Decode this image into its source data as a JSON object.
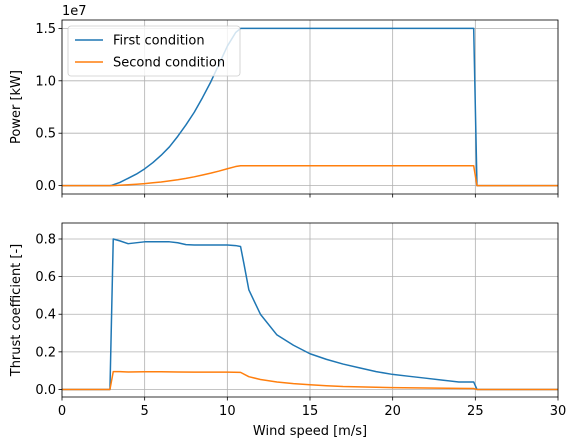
{
  "chart_data": [
    {
      "type": "line",
      "ylabel": "Power [kW]",
      "xlabel": "",
      "xlim": [
        0,
        30
      ],
      "ylim": [
        -0.08,
        1.58
      ],
      "y_offset_label": "1e7",
      "xticks": [
        0,
        5,
        10,
        15,
        20,
        25,
        30
      ],
      "xtick_labels": [],
      "yticks": [
        0.0,
        0.5,
        1.0,
        1.5
      ],
      "ytick_labels": [
        "0.0",
        "0.5",
        "1.0",
        "1.5"
      ],
      "grid": true,
      "legend_position": "upper-left",
      "series": [
        {
          "name": "First condition",
          "color": "#1f77b4",
          "x": [
            0,
            2.9,
            3,
            3.5,
            4,
            4.5,
            5,
            5.5,
            6,
            6.5,
            7,
            7.5,
            8,
            8.5,
            9,
            9.5,
            10,
            10.5,
            10.8,
            11,
            12,
            15,
            20,
            24.9,
            25.1,
            25.5,
            30
          ],
          "y": [
            0,
            0,
            0.003,
            0.03,
            0.07,
            0.11,
            0.16,
            0.22,
            0.29,
            0.37,
            0.47,
            0.58,
            0.7,
            0.84,
            0.99,
            1.16,
            1.33,
            1.46,
            1.5,
            1.5,
            1.5,
            1.5,
            1.5,
            1.5,
            0,
            0,
            0
          ]
        },
        {
          "name": "Second condition",
          "color": "#ff7f0e",
          "x": [
            0,
            2.9,
            3,
            3.5,
            4,
            4.5,
            5,
            5.5,
            6,
            6.5,
            7,
            7.5,
            8,
            8.5,
            9,
            9.5,
            10,
            10.5,
            10.8,
            11,
            12,
            15,
            20,
            24.9,
            25.1,
            25.5,
            30
          ],
          "y": [
            0,
            0,
            0.0004,
            0.004,
            0.008,
            0.013,
            0.019,
            0.027,
            0.035,
            0.045,
            0.056,
            0.069,
            0.084,
            0.101,
            0.119,
            0.139,
            0.161,
            0.182,
            0.19,
            0.19,
            0.19,
            0.19,
            0.19,
            0.19,
            0,
            0,
            0
          ]
        }
      ]
    },
    {
      "type": "line",
      "ylabel": "Thrust coefficient [-]",
      "xlabel": "Wind speed [m/s]",
      "xlim": [
        0,
        30
      ],
      "ylim": [
        -0.04,
        0.885
      ],
      "xticks": [
        0,
        5,
        10,
        15,
        20,
        25,
        30
      ],
      "xtick_labels": [
        "0",
        "5",
        "10",
        "15",
        "20",
        "25",
        "30"
      ],
      "yticks": [
        0.0,
        0.2,
        0.4,
        0.6,
        0.8
      ],
      "ytick_labels": [
        "0.0",
        "0.2",
        "0.4",
        "0.6",
        "0.8"
      ],
      "grid": true,
      "series": [
        {
          "name": "First condition",
          "color": "#1f77b4",
          "x": [
            0,
            2.9,
            3.1,
            3.5,
            4,
            5,
            6,
            6.5,
            7,
            7.5,
            8,
            9,
            10,
            10.5,
            10.8,
            11,
            11.3,
            12,
            13,
            14,
            15,
            16,
            17,
            18,
            19,
            20,
            21,
            22,
            23,
            24,
            24.9,
            25.1,
            30
          ],
          "y": [
            0,
            0,
            0.8,
            0.79,
            0.775,
            0.785,
            0.785,
            0.785,
            0.78,
            0.77,
            0.768,
            0.768,
            0.768,
            0.765,
            0.76,
            0.67,
            0.53,
            0.4,
            0.29,
            0.235,
            0.19,
            0.16,
            0.135,
            0.115,
            0.095,
            0.08,
            0.07,
            0.06,
            0.05,
            0.04,
            0.04,
            0,
            0
          ]
        },
        {
          "name": "Second condition",
          "color": "#ff7f0e",
          "x": [
            0,
            2.9,
            3.1,
            3.5,
            4,
            5,
            6,
            7,
            8,
            9,
            10,
            10.8,
            11.3,
            12,
            13,
            14,
            15,
            16,
            17,
            18,
            19,
            20,
            22,
            24,
            24.9,
            25.1,
            30
          ],
          "y": [
            0,
            0,
            0.095,
            0.095,
            0.093,
            0.094,
            0.094,
            0.093,
            0.092,
            0.092,
            0.092,
            0.091,
            0.068,
            0.053,
            0.04,
            0.031,
            0.025,
            0.02,
            0.016,
            0.014,
            0.012,
            0.01,
            0.008,
            0.006,
            0.005,
            0,
            0
          ]
        }
      ]
    }
  ]
}
